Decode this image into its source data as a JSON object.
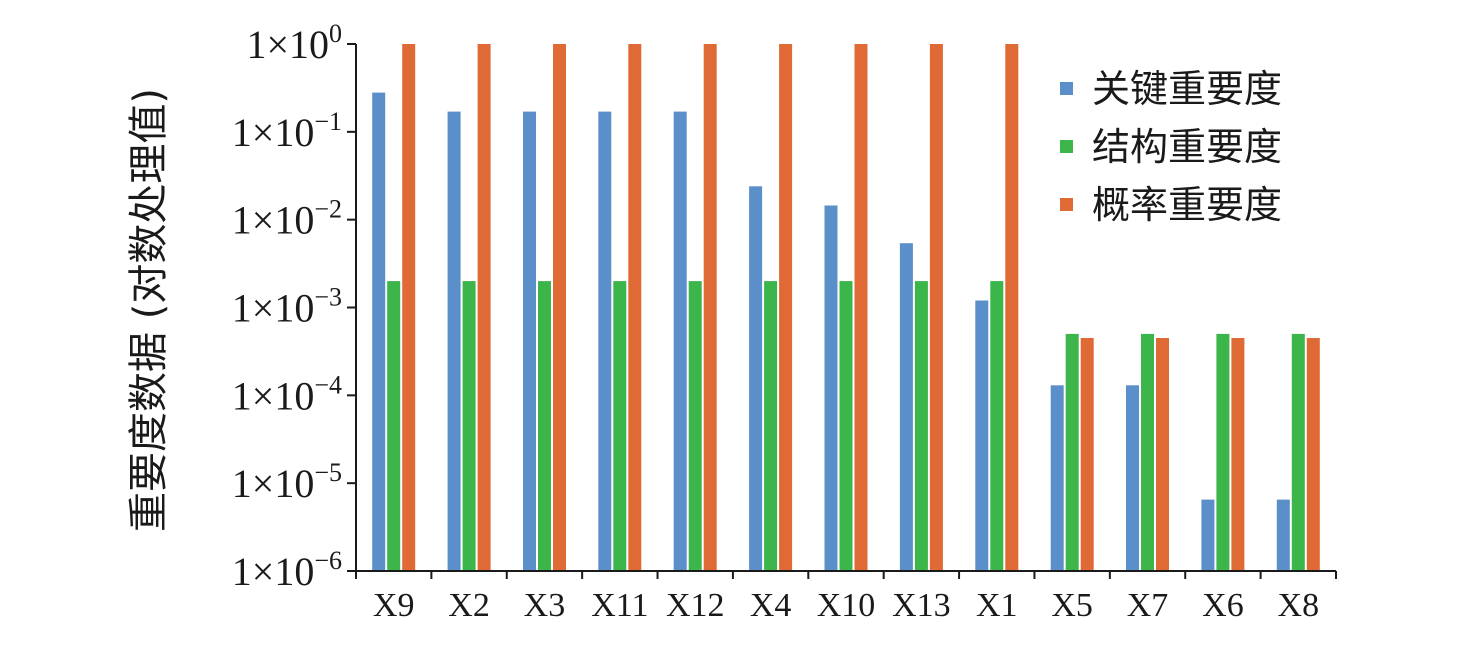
{
  "chart_data": {
    "type": "bar",
    "log_scale": true,
    "ylim": [
      1e-06,
      1
    ],
    "grid": false,
    "legend_position": "top-right",
    "ylabel": "重要度数据 (对数处理值)",
    "xlabel": "",
    "title": "",
    "categories": [
      "X9",
      "X2",
      "X3",
      "X11",
      "X12",
      "X4",
      "X10",
      "X13",
      "X1",
      "X5",
      "X7",
      "X6",
      "X8"
    ],
    "ytick_values": [
      1e-06,
      1e-05,
      0.0001,
      0.001,
      0.01,
      0.1,
      1
    ],
    "ytick_labels": [
      {
        "base": "1×10",
        "exp": "−6"
      },
      {
        "base": "1×10",
        "exp": "−5"
      },
      {
        "base": "1×10",
        "exp": "−4"
      },
      {
        "base": "1×10",
        "exp": "−3"
      },
      {
        "base": "1×10",
        "exp": "−2"
      },
      {
        "base": "1×10",
        "exp": "−1"
      },
      {
        "base": "1×10",
        "exp": "0"
      }
    ],
    "series": [
      {
        "name": "关键重要度",
        "color": "#5b8fca",
        "values": [
          0.28,
          0.17,
          0.17,
          0.17,
          0.17,
          0.024,
          0.0145,
          0.0054,
          0.0012,
          0.00013,
          0.00013,
          6.5e-06,
          6.5e-06
        ]
      },
      {
        "name": "结构重要度",
        "color": "#3cb54a",
        "values": [
          0.002,
          0.002,
          0.002,
          0.002,
          0.002,
          0.002,
          0.002,
          0.002,
          0.002,
          0.0005,
          0.0005,
          0.0005,
          0.0005
        ]
      },
      {
        "name": "概率重要度",
        "color": "#e06a36",
        "values": [
          1,
          1,
          1,
          1,
          1,
          1,
          1,
          1,
          1,
          0.00045,
          0.00045,
          0.00045,
          0.00045
        ]
      }
    ]
  }
}
